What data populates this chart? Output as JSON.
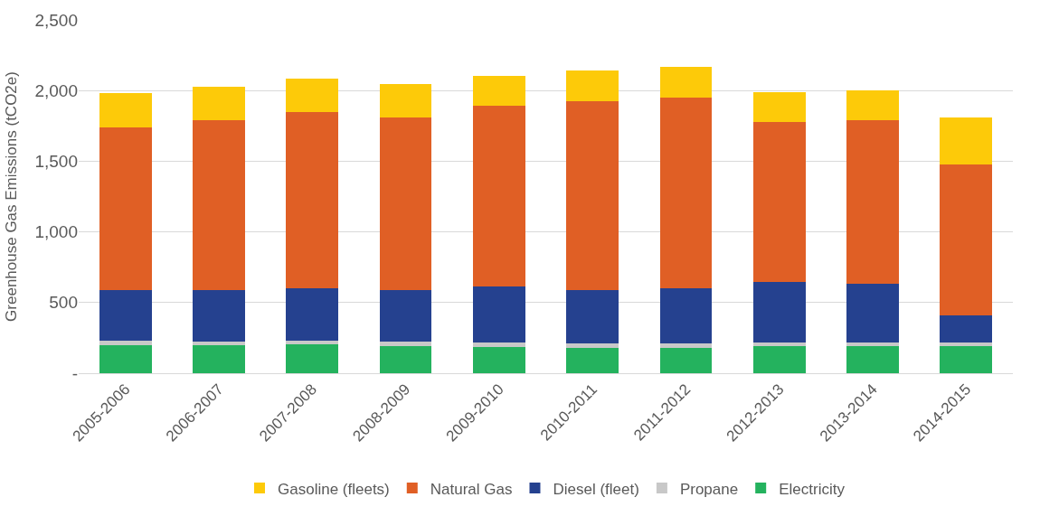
{
  "chart_data": {
    "type": "bar",
    "stacked": true,
    "ylabel": "Greenhouse Gas Emissions (tCO2e)",
    "categories": [
      "2005-2006",
      "2006-2007",
      "2007-2008",
      "2008-2009",
      "2009-2010",
      "2010-2011",
      "2011-2012",
      "2012-2013",
      "2013-2014",
      "2014-2015"
    ],
    "series": [
      {
        "name": "Electricity",
        "color": "#24b25e",
        "values": [
          197,
          197,
          203,
          189,
          186,
          180,
          176,
          189,
          189,
          189
        ]
      },
      {
        "name": "Propane",
        "color": "#c8c8c8",
        "values": [
          32,
          30,
          28,
          33,
          32,
          30,
          32,
          29,
          29,
          29
        ]
      },
      {
        "name": "Diesel (fleet)",
        "color": "#25418f",
        "values": [
          360,
          362,
          369,
          365,
          396,
          379,
          396,
          430,
          415,
          191
        ]
      },
      {
        "name": "Natural Gas",
        "color": "#e05f25",
        "values": [
          1153,
          1201,
          1245,
          1224,
          1280,
          1335,
          1343,
          1127,
          1157,
          1070
        ]
      },
      {
        "name": "Gasoline (fleets)",
        "color": "#fdca09",
        "values": [
          239,
          238,
          240,
          238,
          208,
          216,
          220,
          214,
          212,
          328
        ]
      }
    ],
    "ylim": [
      0,
      2500
    ],
    "yticks": [
      {
        "value": 0,
        "label": "-"
      },
      {
        "value": 500,
        "label": "500"
      },
      {
        "value": 1000,
        "label": "1,000"
      },
      {
        "value": 1500,
        "label": "1,500"
      },
      {
        "value": 2000,
        "label": "2,000"
      },
      {
        "value": 2500,
        "label": "2,500"
      }
    ],
    "grid": "y",
    "legend": "bottom"
  }
}
